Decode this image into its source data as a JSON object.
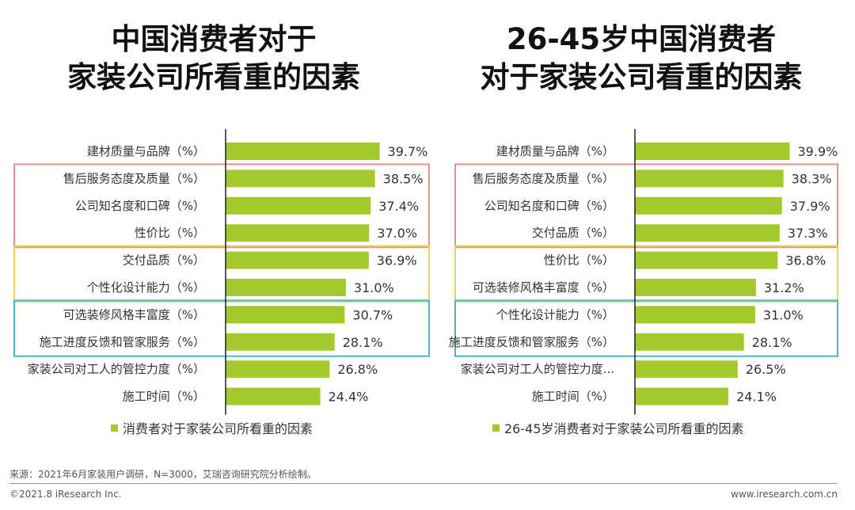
{
  "colors": {
    "bar": "#a3c92a",
    "box_red": "#e8908e",
    "box_yellow": "#ead35b",
    "box_blue": "#4db6cd",
    "axis": "#222222"
  },
  "chart_data": [
    {
      "type": "bar",
      "orientation": "horizontal",
      "title_lines": [
        "中国消费者对于",
        "家装公司所看重的因素"
      ],
      "categories": [
        "建材质量与品牌（%）",
        "售后服务态度及质量（%）",
        "公司知名度和口碑（%）",
        "性价比（%）",
        "交付品质（%）",
        "个性化设计能力（%）",
        "可选装修风格丰富度（%）",
        "施工进度反馈和管家服务（%）",
        "家装公司对工人的管控力度（%）",
        "施工时间（%）"
      ],
      "values": [
        39.7,
        38.5,
        37.4,
        37.0,
        36.9,
        31.0,
        30.7,
        28.1,
        26.8,
        24.4
      ],
      "value_labels": [
        "39.7%",
        "38.5%",
        "37.4%",
        "37.0%",
        "36.9%",
        "31.0%",
        "30.7%",
        "28.1%",
        "26.8%",
        "24.4%"
      ],
      "legend": "消费者对于家装公司所看重的因素",
      "highlight_groups": [
        {
          "color": "red",
          "rows": [
            1,
            3
          ]
        },
        {
          "color": "yellow",
          "rows": [
            4,
            5
          ]
        },
        {
          "color": "blue",
          "rows": [
            6,
            7
          ]
        }
      ]
    },
    {
      "type": "bar",
      "orientation": "horizontal",
      "title_lines": [
        "26-45岁中国消费者",
        "对于家装公司看重的因素"
      ],
      "categories": [
        "建材质量与品牌（%）",
        "售后服务态度及质量（%）",
        "公司知名度和口碑（%）",
        "交付品质（%）",
        "性价比（%）",
        "可选装修风格丰富度（%）",
        "个性化设计能力（%）",
        "施工进度反馈和管家服务（%）",
        "家装公司对工人的管控力度...",
        "施工时间（%）"
      ],
      "values": [
        39.9,
        38.3,
        37.9,
        37.3,
        36.8,
        31.2,
        31.0,
        28.1,
        26.5,
        24.1
      ],
      "value_labels": [
        "39.9%",
        "38.3%",
        "37.9%",
        "37.3%",
        "36.8%",
        "31.2%",
        "31.0%",
        "28.1%",
        "26.5%",
        "24.1%"
      ],
      "legend": "26-45岁消费者对于家装公司所看重的因素",
      "highlight_groups": [
        {
          "color": "red",
          "rows": [
            1,
            3
          ]
        },
        {
          "color": "yellow",
          "rows": [
            4,
            5
          ]
        },
        {
          "color": "blue",
          "rows": [
            6,
            7
          ]
        }
      ]
    }
  ],
  "footer": {
    "source": "来源：2021年6月家装用户调研，N=3000，艾瑞咨询研究院分析绘制。",
    "copyright": "©2021.8 iResearch Inc.",
    "website": "www.iresearch.com.cn"
  }
}
